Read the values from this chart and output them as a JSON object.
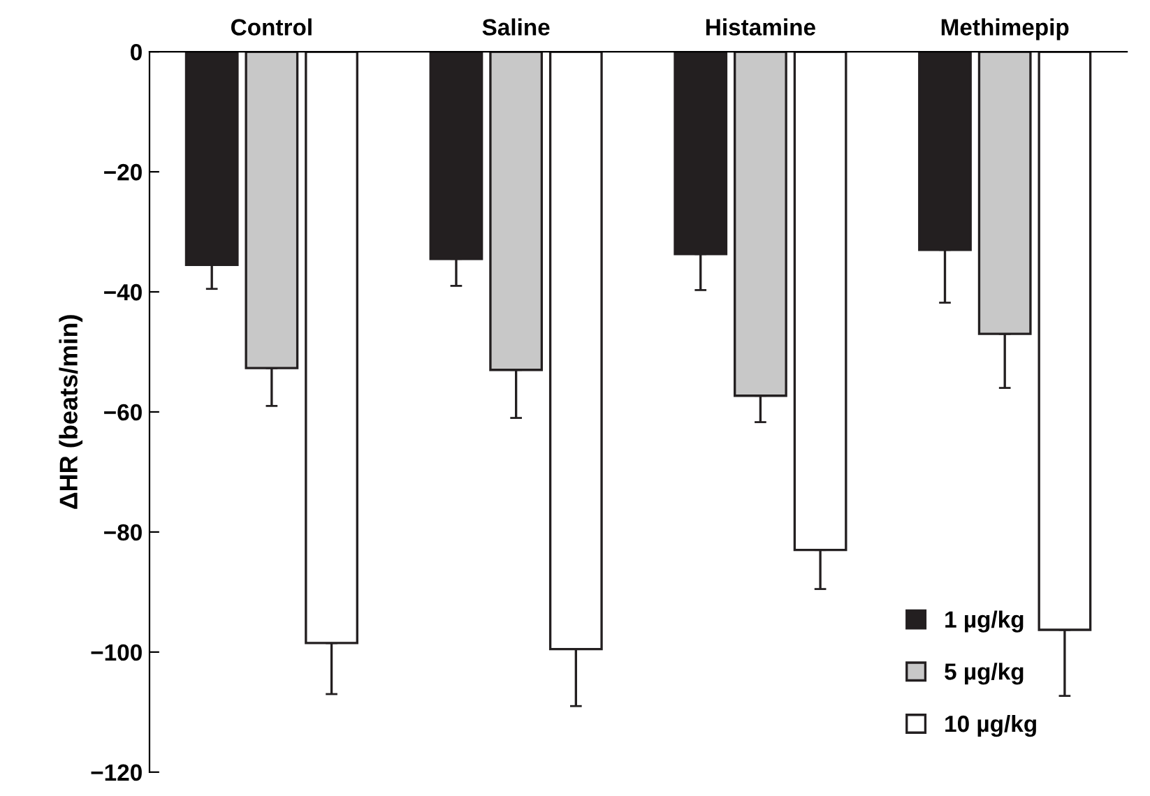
{
  "chart_data": {
    "type": "bar",
    "ylabel": "ΔHR (beats/min)",
    "categories": [
      "Control",
      "Saline",
      "Histamine",
      "Methimepip"
    ],
    "series": [
      {
        "name": "1 µg/kg",
        "color": "#231f20",
        "values": [
          -35.5,
          -34.5,
          -33.7,
          -33
        ],
        "errors": [
          [
            -39.5,
            -35.5
          ],
          [
            -39,
            -34.5
          ],
          [
            -39.7,
            -33.7
          ],
          [
            -41.8,
            -33
          ]
        ]
      },
      {
        "name": "5 µg/kg",
        "color": "#c8c8c8",
        "values": [
          -52.7,
          -53,
          -57.3,
          -47
        ],
        "errors": [
          [
            -59,
            -52.7
          ],
          [
            -61,
            -53
          ],
          [
            -61.7,
            -57.3
          ],
          [
            -56,
            -47
          ]
        ]
      },
      {
        "name": "10 µg/kg",
        "color": "#ffffff",
        "values": [
          -98.5,
          -99.5,
          -83,
          -96.3
        ],
        "errors": [
          [
            -107,
            -98.5
          ],
          [
            -109,
            -99.5
          ],
          [
            -89.5,
            -83
          ],
          [
            -107.3,
            -96.3
          ]
        ]
      }
    ],
    "ylim": [
      -120,
      0
    ],
    "yticks": [
      {
        "value": 0,
        "label": "0"
      },
      {
        "value": -20,
        "label": "−20"
      },
      {
        "value": -40,
        "label": "−40"
      },
      {
        "value": -60,
        "label": "−60"
      },
      {
        "value": -80,
        "label": "−80"
      },
      {
        "value": -100,
        "label": "−100"
      },
      {
        "value": -120,
        "label": "−120"
      }
    ],
    "grid": false,
    "legend": "bottom right"
  }
}
